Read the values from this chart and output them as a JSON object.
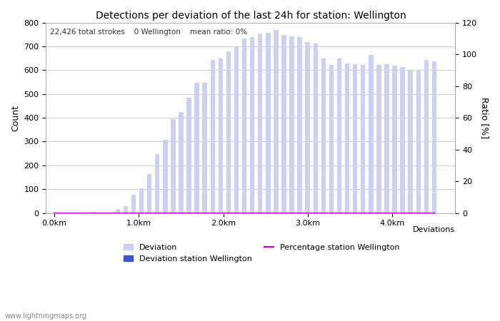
{
  "title": "Detections per deviation of the last 24h for station: Wellington",
  "subtitle": "22,426 total strokes    0 Wellington    mean ratio: 0%",
  "xlabel": "Deviations",
  "ylabel_left": "Count",
  "ylabel_right": "Ratio [%]",
  "ylim_left": [
    0,
    800
  ],
  "ylim_right": [
    0,
    120
  ],
  "yticks_left": [
    0,
    100,
    200,
    300,
    400,
    500,
    600,
    700,
    800
  ],
  "yticks_right": [
    0,
    20,
    40,
    60,
    80,
    100,
    120
  ],
  "xtick_labels": [
    "0.0km",
    "1.0km",
    "2.0km",
    "3.0km",
    "4.0km"
  ],
  "xtick_positions": [
    0.0,
    1.0,
    2.0,
    3.0,
    4.0
  ],
  "bar_width": 0.055,
  "deviation_bar_color": "#cdd0ee",
  "deviation_station_color": "#4455cc",
  "percentage_line_color": "#cc00cc",
  "watermark": "www.lightningmaps.org",
  "bar_values": [
    3,
    3,
    3,
    3,
    3,
    5,
    3,
    3,
    18,
    28,
    78,
    103,
    163,
    248,
    308,
    393,
    423,
    483,
    548,
    548,
    643,
    648,
    678,
    698,
    733,
    738,
    753,
    758,
    768,
    748,
    743,
    738,
    718,
    713,
    648,
    623,
    648,
    628,
    626,
    623,
    663,
    623,
    626,
    618,
    613,
    598,
    598,
    643,
    638
  ],
  "station_bar_values": [
    0,
    0,
    0,
    0,
    0,
    0,
    0,
    0,
    0,
    0,
    0,
    0,
    0,
    0,
    0,
    0,
    0,
    0,
    0,
    0,
    0,
    0,
    0,
    0,
    0,
    0,
    0,
    0,
    0,
    0,
    0,
    0,
    0,
    0,
    0,
    0,
    0,
    0,
    0,
    0,
    0,
    0,
    0,
    0,
    0,
    0,
    0,
    0,
    0
  ],
  "percentage_values": [
    0,
    0,
    0,
    0,
    0,
    0,
    0,
    0,
    0,
    0,
    0,
    0,
    0,
    0,
    0,
    0,
    0,
    0,
    0,
    0,
    0,
    0,
    0,
    0,
    0,
    0,
    0,
    0,
    0,
    0,
    0,
    0,
    0,
    0,
    0,
    0,
    0,
    0,
    0,
    0,
    0,
    0,
    0,
    0,
    0,
    0,
    0,
    0,
    0
  ],
  "n_bars": 49,
  "x_start": 0.0,
  "x_end": 4.5,
  "xlim": [
    -0.1,
    4.75
  ],
  "figsize": [
    7.0,
    4.5
  ],
  "dpi": 100,
  "background_color": "#ffffff",
  "grid_color": "#bbbbbb",
  "spine_color": "#aaaaaa",
  "tick_fontsize": 8,
  "label_fontsize": 9,
  "title_fontsize": 10,
  "subtitle_fontsize": 7.5,
  "watermark_fontsize": 7,
  "watermark_color": "#888888"
}
